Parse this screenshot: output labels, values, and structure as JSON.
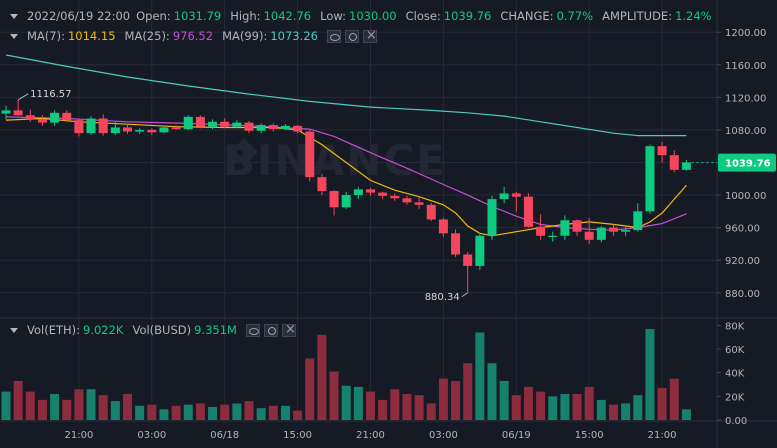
{
  "header": {
    "datetime": "2022/06/19 22:00",
    "open_label": "Open:",
    "open": "1031.79",
    "high_label": "High:",
    "high": "1042.76",
    "low_label": "Low:",
    "low": "1030.00",
    "close_label": "Close:",
    "close": "1039.76",
    "change_label": "CHANGE:",
    "change": "0.77%",
    "amplitude_label": "AMPLITUDE:",
    "amplitude": "1.24%"
  },
  "ma_legend": {
    "ma7_label": "MA(7):",
    "ma7": "1014.15",
    "ma7_color": "#f0b90b",
    "ma25_label": "MA(25):",
    "ma25": "976.52",
    "ma25_color": "#c74ed6",
    "ma99_label": "MA(99):",
    "ma99": "1073.26",
    "ma99_color": "#4ec9c2"
  },
  "vol_legend": {
    "label1": "Vol(ETH):",
    "value1": "9.022K",
    "label2": "Vol(BUSD)",
    "value2": "9.351M"
  },
  "colors": {
    "up": "#0ecb81",
    "down": "#f6465d",
    "up_vol": "#16826c",
    "down_vol": "#8c2c3e",
    "grid": "#262a36",
    "bg": "#161a25"
  },
  "watermark": "BINANCE",
  "chart_data": {
    "type": "candlestick",
    "price_axis": {
      "ticks": [
        1200,
        1160,
        1120,
        1080,
        1040,
        1000,
        960,
        920,
        880
      ],
      "labels": [
        "1200.00",
        "1160.00",
        "1120.00",
        "1080.00",
        "1040.00",
        "1000.00",
        "960.00",
        "920.00",
        "880.00"
      ],
      "range": [
        849,
        1215
      ]
    },
    "volume_axis": {
      "ticks": [
        80000,
        60000,
        40000,
        20000,
        0
      ],
      "labels": [
        "80K",
        "60K",
        "40K",
        "20K",
        "0.00"
      ],
      "range": [
        0,
        82000
      ]
    },
    "time_labels": [
      "21:00",
      "03:00",
      "06/18",
      "15:00",
      "21:00",
      "03:00",
      "06/19",
      "15:00",
      "21:00"
    ],
    "time_label_index": [
      6,
      12,
      18,
      24,
      30,
      36,
      42,
      48,
      54
    ],
    "last_price_label": "1039.76",
    "annotations": {
      "high_label": "1116.57",
      "high_index": 1,
      "low_label": "880.34",
      "low_index": 38
    },
    "candles": [
      {
        "o": 1100,
        "h": 1110,
        "l": 1093,
        "c": 1104,
        "v": 24000
      },
      {
        "o": 1104,
        "h": 1117,
        "l": 1097,
        "c": 1098,
        "v": 33000
      },
      {
        "o": 1098,
        "h": 1105,
        "l": 1090,
        "c": 1093,
        "v": 24000
      },
      {
        "o": 1093,
        "h": 1098,
        "l": 1085,
        "c": 1089,
        "v": 17000
      },
      {
        "o": 1089,
        "h": 1104,
        "l": 1085,
        "c": 1101,
        "v": 22000
      },
      {
        "o": 1101,
        "h": 1104,
        "l": 1090,
        "c": 1092,
        "v": 17000
      },
      {
        "o": 1092,
        "h": 1094,
        "l": 1072,
        "c": 1076,
        "v": 26000
      },
      {
        "o": 1076,
        "h": 1097,
        "l": 1074,
        "c": 1094,
        "v": 26000
      },
      {
        "o": 1094,
        "h": 1099,
        "l": 1073,
        "c": 1076,
        "v": 21000
      },
      {
        "o": 1076,
        "h": 1090,
        "l": 1074,
        "c": 1083,
        "v": 16000
      },
      {
        "o": 1083,
        "h": 1087,
        "l": 1075,
        "c": 1078,
        "v": 22000
      },
      {
        "o": 1078,
        "h": 1082,
        "l": 1075,
        "c": 1080,
        "v": 12000
      },
      {
        "o": 1080,
        "h": 1082,
        "l": 1074,
        "c": 1077,
        "v": 13000
      },
      {
        "o": 1077,
        "h": 1085,
        "l": 1076,
        "c": 1083,
        "v": 9000
      },
      {
        "o": 1083,
        "h": 1086,
        "l": 1080,
        "c": 1081,
        "v": 12000
      },
      {
        "o": 1081,
        "h": 1098,
        "l": 1080,
        "c": 1096,
        "v": 13000
      },
      {
        "o": 1096,
        "h": 1098,
        "l": 1082,
        "c": 1084,
        "v": 14000
      },
      {
        "o": 1084,
        "h": 1093,
        "l": 1081,
        "c": 1090,
        "v": 11000
      },
      {
        "o": 1090,
        "h": 1094,
        "l": 1082,
        "c": 1084,
        "v": 13000
      },
      {
        "o": 1084,
        "h": 1092,
        "l": 1082,
        "c": 1089,
        "v": 14000
      },
      {
        "o": 1089,
        "h": 1091,
        "l": 1076,
        "c": 1079,
        "v": 16000
      },
      {
        "o": 1079,
        "h": 1088,
        "l": 1076,
        "c": 1086,
        "v": 10000
      },
      {
        "o": 1086,
        "h": 1088,
        "l": 1078,
        "c": 1081,
        "v": 12000
      },
      {
        "o": 1081,
        "h": 1087,
        "l": 1080,
        "c": 1085,
        "v": 12000
      },
      {
        "o": 1085,
        "h": 1086,
        "l": 1076,
        "c": 1078,
        "v": 8000
      },
      {
        "o": 1078,
        "h": 1080,
        "l": 1017,
        "c": 1022,
        "v": 52000
      },
      {
        "o": 1022,
        "h": 1026,
        "l": 1000,
        "c": 1005,
        "v": 72000
      },
      {
        "o": 1005,
        "h": 1006,
        "l": 975,
        "c": 985,
        "v": 41000
      },
      {
        "o": 985,
        "h": 1004,
        "l": 983,
        "c": 1000,
        "v": 29000
      },
      {
        "o": 1000,
        "h": 1010,
        "l": 995,
        "c": 1007,
        "v": 28000
      },
      {
        "o": 1007,
        "h": 1009,
        "l": 999,
        "c": 1003,
        "v": 24000
      },
      {
        "o": 1003,
        "h": 1004,
        "l": 995,
        "c": 999,
        "v": 17000
      },
      {
        "o": 999,
        "h": 1002,
        "l": 993,
        "c": 996,
        "v": 26000
      },
      {
        "o": 996,
        "h": 999,
        "l": 988,
        "c": 991,
        "v": 22000
      },
      {
        "o": 991,
        "h": 998,
        "l": 983,
        "c": 988,
        "v": 21000
      },
      {
        "o": 988,
        "h": 990,
        "l": 968,
        "c": 970,
        "v": 14000
      },
      {
        "o": 970,
        "h": 972,
        "l": 949,
        "c": 953,
        "v": 35000
      },
      {
        "o": 953,
        "h": 958,
        "l": 924,
        "c": 927,
        "v": 33000
      },
      {
        "o": 927,
        "h": 930,
        "l": 880,
        "c": 913,
        "v": 48000
      },
      {
        "o": 913,
        "h": 954,
        "l": 908,
        "c": 950,
        "v": 74000
      },
      {
        "o": 950,
        "h": 999,
        "l": 945,
        "c": 995,
        "v": 48000
      },
      {
        "o": 995,
        "h": 1010,
        "l": 990,
        "c": 1002,
        "v": 33000
      },
      {
        "o": 1002,
        "h": 1004,
        "l": 979,
        "c": 998,
        "v": 21000
      },
      {
        "o": 998,
        "h": 1002,
        "l": 960,
        "c": 961,
        "v": 28000
      },
      {
        "o": 961,
        "h": 976,
        "l": 945,
        "c": 950,
        "v": 24000
      },
      {
        "o": 950,
        "h": 955,
        "l": 943,
        "c": 950,
        "v": 20000
      },
      {
        "o": 950,
        "h": 975,
        "l": 945,
        "c": 969,
        "v": 22000
      },
      {
        "o": 969,
        "h": 970,
        "l": 950,
        "c": 955,
        "v": 22000
      },
      {
        "o": 955,
        "h": 972,
        "l": 940,
        "c": 945,
        "v": 28000
      },
      {
        "o": 945,
        "h": 962,
        "l": 942,
        "c": 960,
        "v": 17000
      },
      {
        "o": 960,
        "h": 964,
        "l": 950,
        "c": 955,
        "v": 13000
      },
      {
        "o": 955,
        "h": 962,
        "l": 950,
        "c": 957,
        "v": 14000
      },
      {
        "o": 957,
        "h": 990,
        "l": 955,
        "c": 980,
        "v": 21000
      },
      {
        "o": 980,
        "h": 1062,
        "l": 977,
        "c": 1060,
        "v": 77000
      },
      {
        "o": 1060,
        "h": 1065,
        "l": 1040,
        "c": 1049,
        "v": 27000
      },
      {
        "o": 1049,
        "h": 1055,
        "l": 1028,
        "c": 1031,
        "v": 35000
      },
      {
        "o": 1031,
        "h": 1043,
        "l": 1030,
        "c": 1040,
        "v": 9022
      }
    ],
    "ma7": [
      [
        0,
        1092
      ],
      [
        3,
        1094
      ],
      [
        6,
        1090
      ],
      [
        10,
        1087
      ],
      [
        14,
        1084
      ],
      [
        18,
        1083
      ],
      [
        22,
        1083
      ],
      [
        24,
        1080
      ],
      [
        26,
        1062
      ],
      [
        28,
        1040
      ],
      [
        30,
        1018
      ],
      [
        32,
        1006
      ],
      [
        34,
        998
      ],
      [
        36,
        988
      ],
      [
        37,
        978
      ],
      [
        38,
        962
      ],
      [
        39,
        953
      ],
      [
        40,
        950
      ],
      [
        42,
        955
      ],
      [
        44,
        960
      ],
      [
        46,
        964
      ],
      [
        48,
        967
      ],
      [
        50,
        964
      ],
      [
        52,
        960
      ],
      [
        53,
        967
      ],
      [
        54,
        978
      ],
      [
        55,
        995
      ],
      [
        56,
        1012
      ]
    ],
    "ma25": [
      [
        0,
        1096
      ],
      [
        5,
        1094
      ],
      [
        10,
        1090
      ],
      [
        15,
        1088
      ],
      [
        20,
        1085
      ],
      [
        25,
        1081
      ],
      [
        27,
        1072
      ],
      [
        30,
        1052
      ],
      [
        33,
        1033
      ],
      [
        36,
        1013
      ],
      [
        38,
        1000
      ],
      [
        40,
        986
      ],
      [
        42,
        974
      ],
      [
        44,
        964
      ],
      [
        46,
        960
      ],
      [
        48,
        958
      ],
      [
        50,
        957
      ],
      [
        52,
        960
      ],
      [
        54,
        965
      ],
      [
        56,
        977
      ]
    ],
    "ma99": [
      [
        0,
        1172
      ],
      [
        5,
        1158
      ],
      [
        10,
        1145
      ],
      [
        15,
        1134
      ],
      [
        20,
        1124
      ],
      [
        25,
        1115
      ],
      [
        30,
        1108
      ],
      [
        35,
        1104
      ],
      [
        38,
        1101
      ],
      [
        41,
        1097
      ],
      [
        44,
        1090
      ],
      [
        47,
        1083
      ],
      [
        50,
        1076
      ],
      [
        52,
        1073
      ],
      [
        54,
        1073
      ],
      [
        56,
        1073
      ]
    ]
  }
}
